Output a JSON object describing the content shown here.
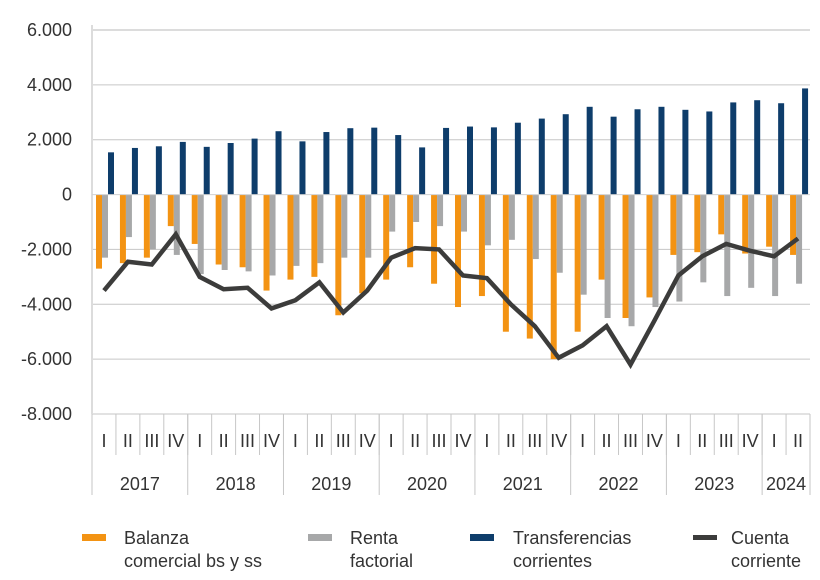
{
  "chart_data": {
    "type": "bar+line",
    "title": "",
    "xlabel": "",
    "ylabel": "",
    "ylim": [
      -8000,
      6000
    ],
    "yticks": [
      6000,
      4000,
      2000,
      0,
      -2000,
      -4000,
      -6000,
      -8000
    ],
    "ytick_labels": [
      "6.000",
      "4.000",
      "2.000",
      "0",
      "-2.000",
      "-4.000",
      "-6.000",
      "-8.000"
    ],
    "grid": true,
    "legend_position": "bottom",
    "years": [
      {
        "label": "2017",
        "quarters": 4
      },
      {
        "label": "2018",
        "quarters": 4
      },
      {
        "label": "2019",
        "quarters": 4
      },
      {
        "label": "2020",
        "quarters": 4
      },
      {
        "label": "2021",
        "quarters": 4
      },
      {
        "label": "2022",
        "quarters": 4
      },
      {
        "label": "2023",
        "quarters": 4
      },
      {
        "label": "2024",
        "quarters": 2
      }
    ],
    "categories": [
      "I",
      "II",
      "III",
      "IV",
      "I",
      "II",
      "III",
      "IV",
      "I",
      "II",
      "III",
      "IV",
      "I",
      "II",
      "III",
      "IV",
      "I",
      "II",
      "III",
      "IV",
      "I",
      "II",
      "III",
      "IV",
      "I",
      "II",
      "III",
      "IV",
      "I",
      "II"
    ],
    "series": [
      {
        "name": "Balanza comercial bs y ss",
        "legend_lines": [
          "Balanza",
          "comercial bs y ss"
        ],
        "type": "bar",
        "color": "#F39313",
        "values": [
          -2700,
          -2500,
          -2300,
          -1150,
          -1800,
          -2550,
          -2650,
          -3500,
          -3100,
          -3000,
          -4400,
          -3600,
          -3100,
          -2650,
          -3250,
          -4100,
          -3700,
          -5000,
          -5250,
          -6000,
          -5000,
          -3100,
          -4500,
          -3750,
          -2200,
          -2100,
          -1450,
          -2150,
          -1900,
          -2200
        ]
      },
      {
        "name": "Renta factorial",
        "legend_lines": [
          "Renta",
          "factorial"
        ],
        "type": "bar",
        "color": "#A7A8A9",
        "values": [
          -2300,
          -1550,
          -2000,
          -2200,
          -2900,
          -2750,
          -2800,
          -2950,
          -2600,
          -2500,
          -2300,
          -2300,
          -1350,
          -1000,
          -1150,
          -1350,
          -1850,
          -1650,
          -2350,
          -2850,
          -3650,
          -4500,
          -4800,
          -4100,
          -3900,
          -3200,
          -3700,
          -3400,
          -3700,
          -3250
        ]
      },
      {
        "name": "Transferencias corrientes",
        "legend_lines": [
          "Transferencias",
          "corrientes"
        ],
        "type": "bar",
        "color": "#0E3D6B",
        "values": [
          1540,
          1700,
          1760,
          1920,
          1740,
          1880,
          2040,
          2310,
          1940,
          2280,
          2420,
          2440,
          2170,
          1720,
          2430,
          2480,
          2450,
          2620,
          2770,
          2930,
          3200,
          2840,
          3110,
          3200,
          3090,
          3030,
          3360,
          3440,
          3330,
          3870
        ]
      },
      {
        "name": "Cuenta corriente",
        "legend_lines": [
          "Cuenta",
          "corriente"
        ],
        "type": "line",
        "color": "#3C3C3B",
        "values": [
          -3500,
          -2450,
          -2550,
          -1450,
          -3000,
          -3450,
          -3400,
          -4150,
          -3850,
          -3200,
          -4300,
          -3500,
          -2300,
          -1950,
          -2000,
          -2950,
          -3050,
          -4000,
          -4800,
          -5950,
          -5500,
          -4800,
          -6200,
          -4600,
          -2950,
          -2250,
          -1800,
          -2050,
          -2250,
          -1600
        ]
      }
    ]
  }
}
